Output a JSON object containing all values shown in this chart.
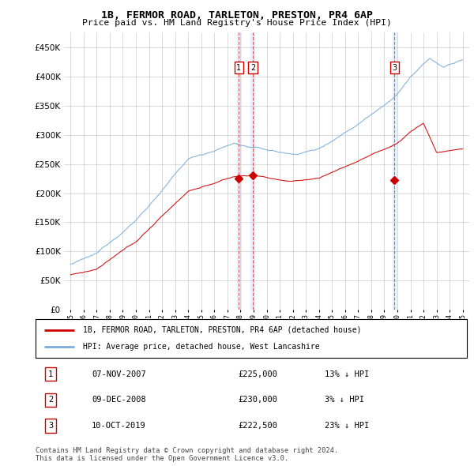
{
  "title": "1B, FERMOR ROAD, TARLETON, PRESTON, PR4 6AP",
  "subtitle": "Price paid vs. HM Land Registry's House Price Index (HPI)",
  "legend_property": "1B, FERMOR ROAD, TARLETON, PRESTON, PR4 6AP (detached house)",
  "legend_hpi": "HPI: Average price, detached house, West Lancashire",
  "footer": "Contains HM Land Registry data © Crown copyright and database right 2024.\nThis data is licensed under the Open Government Licence v3.0.",
  "sales": [
    {
      "num": 1,
      "date": "07-NOV-2007",
      "price": 225000,
      "pct": "13%",
      "x_year": 2007.86
    },
    {
      "num": 2,
      "date": "09-DEC-2008",
      "price": 230000,
      "pct": "3%",
      "x_year": 2008.94
    },
    {
      "num": 3,
      "date": "10-OCT-2019",
      "price": 222500,
      "pct": "23%",
      "x_year": 2019.78
    }
  ],
  "ylim": [
    0,
    475000
  ],
  "yticks": [
    0,
    50000,
    100000,
    150000,
    200000,
    250000,
    300000,
    350000,
    400000,
    450000
  ],
  "xlim": [
    1994.5,
    2025.5
  ],
  "property_color": "#cc0000",
  "hpi_color": "#7aabdb",
  "hpi_fill_color": "#ddeeff",
  "background_color": "#ffffff",
  "grid_color": "#cccccc",
  "vline_fill_color": "#ddeeff"
}
